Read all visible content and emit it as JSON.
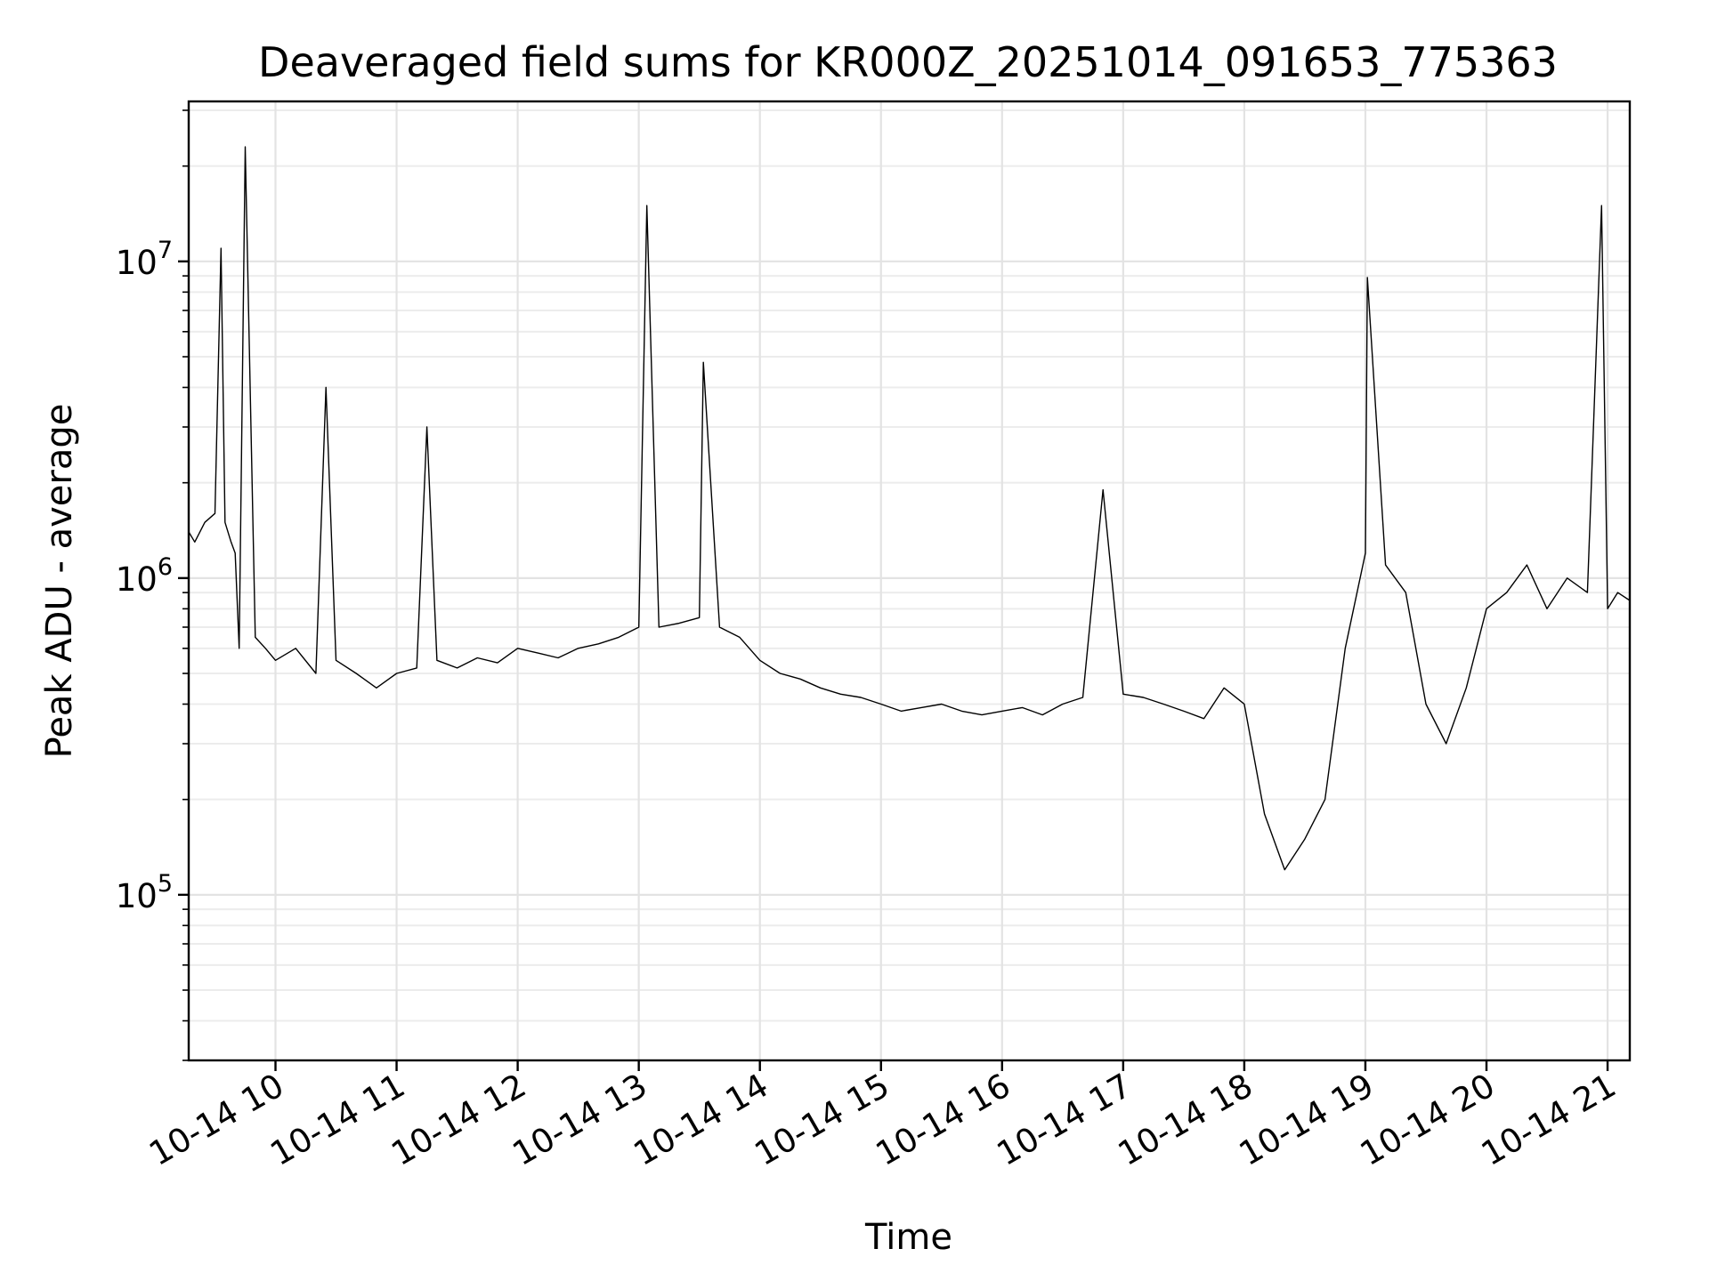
{
  "chart_data": {
    "type": "line",
    "title": "Deaveraged field sums for KR000Z_20251014_091653_775363",
    "xlabel": "Time",
    "ylabel": "Peak ADU - average",
    "yscale": "log",
    "ylim": [
      30000,
      32000000
    ],
    "xlim": [
      "2025-10-14 09:17",
      "2025-10-14 21:11"
    ],
    "x_ticks": [
      {
        "value": "2025-10-14 10:00",
        "label": "10-14 10"
      },
      {
        "value": "2025-10-14 11:00",
        "label": "10-14 11"
      },
      {
        "value": "2025-10-14 12:00",
        "label": "10-14 12"
      },
      {
        "value": "2025-10-14 13:00",
        "label": "10-14 13"
      },
      {
        "value": "2025-10-14 14:00",
        "label": "10-14 14"
      },
      {
        "value": "2025-10-14 15:00",
        "label": "10-14 15"
      },
      {
        "value": "2025-10-14 16:00",
        "label": "10-14 16"
      },
      {
        "value": "2025-10-14 17:00",
        "label": "10-14 17"
      },
      {
        "value": "2025-10-14 18:00",
        "label": "10-14 18"
      },
      {
        "value": "2025-10-14 19:00",
        "label": "10-14 19"
      },
      {
        "value": "2025-10-14 20:00",
        "label": "10-14 20"
      },
      {
        "value": "2025-10-14 21:00",
        "label": "10-14 21"
      }
    ],
    "y_ticks": [
      {
        "value": 100000,
        "base": "10",
        "exp": "5"
      },
      {
        "value": 1000000,
        "base": "10",
        "exp": "6"
      },
      {
        "value": 10000000,
        "base": "10",
        "exp": "7"
      }
    ],
    "grid": true,
    "legend": "none",
    "line_color": "#000000",
    "series": [
      {
        "x": [
          "2025-10-14 09:17",
          "2025-10-14 09:20",
          "2025-10-14 09:25",
          "2025-10-14 09:30",
          "2025-10-14 09:33",
          "2025-10-14 09:35",
          "2025-10-14 09:38",
          "2025-10-14 09:40",
          "2025-10-14 09:42",
          "2025-10-14 09:45",
          "2025-10-14 09:50",
          "2025-10-14 09:55",
          "2025-10-14 10:00",
          "2025-10-14 10:10",
          "2025-10-14 10:20",
          "2025-10-14 10:25",
          "2025-10-14 10:30",
          "2025-10-14 10:40",
          "2025-10-14 10:50",
          "2025-10-14 11:00",
          "2025-10-14 11:10",
          "2025-10-14 11:15",
          "2025-10-14 11:20",
          "2025-10-14 11:30",
          "2025-10-14 11:40",
          "2025-10-14 11:50",
          "2025-10-14 12:00",
          "2025-10-14 12:10",
          "2025-10-14 12:20",
          "2025-10-14 12:30",
          "2025-10-14 12:40",
          "2025-10-14 12:50",
          "2025-10-14 13:00",
          "2025-10-14 13:04",
          "2025-10-14 13:10",
          "2025-10-14 13:20",
          "2025-10-14 13:30",
          "2025-10-14 13:32",
          "2025-10-14 13:40",
          "2025-10-14 13:50",
          "2025-10-14 14:00",
          "2025-10-14 14:10",
          "2025-10-14 14:20",
          "2025-10-14 14:30",
          "2025-10-14 14:40",
          "2025-10-14 14:50",
          "2025-10-14 15:00",
          "2025-10-14 15:10",
          "2025-10-14 15:20",
          "2025-10-14 15:30",
          "2025-10-14 15:40",
          "2025-10-14 15:50",
          "2025-10-14 16:00",
          "2025-10-14 16:10",
          "2025-10-14 16:20",
          "2025-10-14 16:30",
          "2025-10-14 16:40",
          "2025-10-14 16:50",
          "2025-10-14 17:00",
          "2025-10-14 17:10",
          "2025-10-14 17:20",
          "2025-10-14 17:30",
          "2025-10-14 17:40",
          "2025-10-14 17:50",
          "2025-10-14 18:00",
          "2025-10-14 18:10",
          "2025-10-14 18:20",
          "2025-10-14 18:30",
          "2025-10-14 18:40",
          "2025-10-14 18:50",
          "2025-10-14 19:00",
          "2025-10-14 19:01",
          "2025-10-14 19:10",
          "2025-10-14 19:20",
          "2025-10-14 19:30",
          "2025-10-14 19:40",
          "2025-10-14 19:50",
          "2025-10-14 20:00",
          "2025-10-14 20:10",
          "2025-10-14 20:20",
          "2025-10-14 20:30",
          "2025-10-14 20:40",
          "2025-10-14 20:50",
          "2025-10-14 20:57",
          "2025-10-14 21:00",
          "2025-10-14 21:05",
          "2025-10-14 21:11"
        ],
        "y": [
          1400000,
          1300000,
          1500000,
          1600000,
          11000000,
          1500000,
          1300000,
          1200000,
          600000,
          23000000,
          650000,
          600000,
          550000,
          600000,
          500000,
          4000000,
          550000,
          500000,
          450000,
          500000,
          520000,
          3000000,
          550000,
          520000,
          560000,
          540000,
          600000,
          580000,
          560000,
          600000,
          620000,
          650000,
          700000,
          15000000,
          700000,
          720000,
          750000,
          4800000,
          700000,
          650000,
          550000,
          500000,
          480000,
          450000,
          430000,
          420000,
          400000,
          380000,
          390000,
          400000,
          380000,
          370000,
          380000,
          390000,
          370000,
          400000,
          420000,
          1900000,
          430000,
          420000,
          400000,
          380000,
          360000,
          450000,
          400000,
          180000,
          120000,
          150000,
          200000,
          600000,
          1200000,
          8900000,
          1100000,
          900000,
          400000,
          300000,
          450000,
          800000,
          900000,
          1100000,
          800000,
          1000000,
          900000,
          15000000,
          800000,
          900000,
          850000
        ]
      }
    ]
  }
}
